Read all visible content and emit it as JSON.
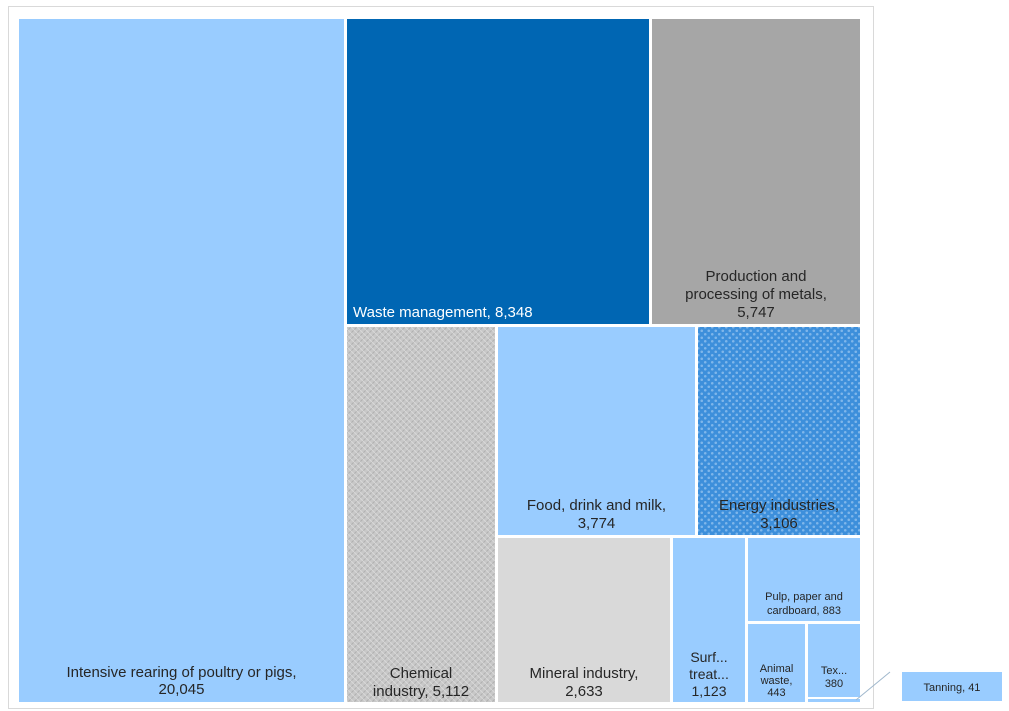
{
  "chart_data": {
    "type": "treemap",
    "cells": [
      {
        "name": "Intensive rearing of poultry or pigs",
        "value": 20045,
        "label_lines": [
          "Intensive rearing of poultry or pigs,",
          "20,045"
        ],
        "fill": "#99ccff",
        "pattern": "none",
        "label_color": "#262626"
      },
      {
        "name": "Waste management",
        "value": 8348,
        "label_lines": [
          "Waste management, 8,348"
        ],
        "fill": "#0066b3",
        "pattern": "none",
        "label_color": "#ffffff"
      },
      {
        "name": "Production and processing of metals",
        "value": 5747,
        "label_lines": [
          "Production and",
          "processing of metals,",
          "5,747"
        ],
        "fill": "#a6a6a6",
        "pattern": "none",
        "label_color": "#262626"
      },
      {
        "name": "Chemical industry",
        "value": 5112,
        "label_lines": [
          "Chemical",
          "industry, 5,112"
        ],
        "fill": "#bfbfbf",
        "pattern": "crosshatch",
        "label_color": "#262626"
      },
      {
        "name": "Food, drink and milk",
        "value": 3774,
        "label_lines": [
          "Food, drink and milk,",
          "3,774"
        ],
        "fill": "#99ccff",
        "pattern": "none",
        "label_color": "#262626"
      },
      {
        "name": "Energy industries",
        "value": 3106,
        "label_lines": [
          "Energy industries,",
          "3,106"
        ],
        "fill": "#3d8fdb",
        "pattern": "dots",
        "label_color": "#262626"
      },
      {
        "name": "Mineral industry",
        "value": 2633,
        "label_lines": [
          "Mineral industry,",
          "2,633"
        ],
        "fill": "#d9d9d9",
        "pattern": "none",
        "label_color": "#262626"
      },
      {
        "name": "Surface treatment",
        "value": 1123,
        "label_lines": [
          "Surf...",
          "treat...",
          "1,123"
        ],
        "fill": "#99ccff",
        "pattern": "none",
        "label_color": "#262626"
      },
      {
        "name": "Pulp, paper and cardboard",
        "value": 883,
        "label_lines": [
          "Pulp, paper and",
          "cardboard, 883"
        ],
        "fill": "#99ccff",
        "pattern": "none",
        "label_color": "#262626"
      },
      {
        "name": "Animal waste",
        "value": 443,
        "label_lines": [
          "Animal",
          "waste,",
          "443"
        ],
        "fill": "#99ccff",
        "pattern": "none",
        "label_color": "#262626"
      },
      {
        "name": "Textiles",
        "value": 380,
        "label_lines": [
          "Tex...",
          "380"
        ],
        "fill": "#99ccff",
        "pattern": "none",
        "label_color": "#262626"
      },
      {
        "name": "Tanning",
        "value": 41,
        "label_lines": [
          "Tanning, 41"
        ],
        "fill": "#99ccff",
        "pattern": "none",
        "label_color": "#262626",
        "callout": true
      }
    ]
  }
}
